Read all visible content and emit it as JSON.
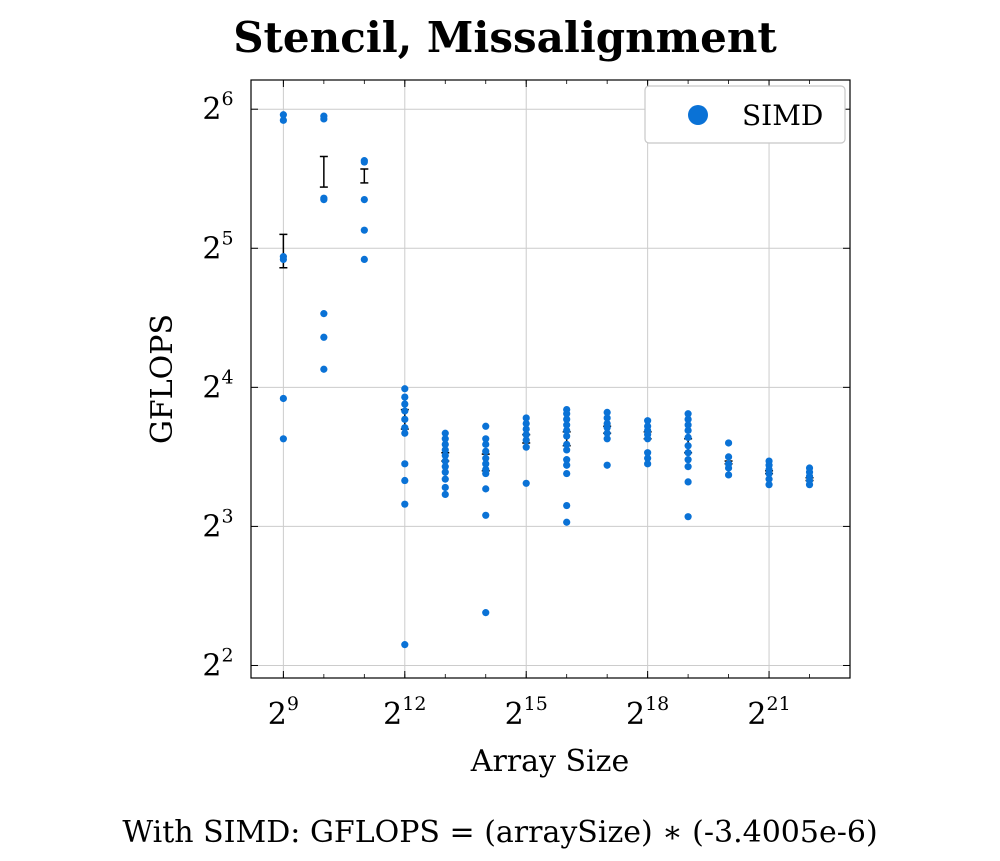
{
  "chart_data": {
    "type": "scatter",
    "title": "Stencil, Missalignment",
    "xlabel": "Array Size",
    "ylabel": "GFLOPS",
    "xscale": "log2",
    "yscale": "log2",
    "xlim_log2": [
      8.2,
      23.0
    ],
    "ylim_log2": [
      1.91,
      6.21
    ],
    "grid": true,
    "x_ticks": [
      {
        "base": "2",
        "exp": "9",
        "value_log2": 9
      },
      {
        "base": "2",
        "exp": "12",
        "value_log2": 12
      },
      {
        "base": "2",
        "exp": "15",
        "value_log2": 15
      },
      {
        "base": "2",
        "exp": "18",
        "value_log2": 18
      },
      {
        "base": "2",
        "exp": "21",
        "value_log2": 21
      }
    ],
    "y_ticks": [
      {
        "base": "2",
        "exp": "2",
        "value_log2": 2
      },
      {
        "base": "2",
        "exp": "3",
        "value_log2": 3
      },
      {
        "base": "2",
        "exp": "4",
        "value_log2": 4
      },
      {
        "base": "2",
        "exp": "5",
        "value_log2": 5
      },
      {
        "base": "2",
        "exp": "6",
        "value_log2": 6
      }
    ],
    "legend": {
      "position": "top-right",
      "entries": [
        {
          "label": "SIMD",
          "color": "#0a72d6"
        }
      ]
    },
    "series": [
      {
        "name": "SIMD",
        "color": "#0a72d6",
        "points": [
          {
            "x_log2": 9,
            "y_log2": [
              5.96,
              5.92,
              4.94,
              4.92,
              3.92,
              3.63
            ]
          },
          {
            "x_log2": 10,
            "y_log2": [
              5.95,
              5.93,
              5.36,
              5.35,
              4.53,
              4.36,
              4.13
            ]
          },
          {
            "x_log2": 11,
            "y_log2": [
              5.63,
              5.62,
              5.35,
              5.13,
              4.92
            ]
          },
          {
            "x_log2": 12,
            "y_log2": [
              3.99,
              3.93,
              3.88,
              3.83,
              3.77,
              3.71,
              3.67,
              3.45,
              3.33,
              3.16,
              2.15
            ]
          },
          {
            "x_log2": 13,
            "y_log2": [
              3.67,
              3.63,
              3.59,
              3.55,
              3.51,
              3.47,
              3.43,
              3.39,
              3.34,
              3.28,
              3.23
            ]
          },
          {
            "x_log2": 14,
            "y_log2": [
              3.72,
              3.63,
              3.59,
              3.54,
              3.49,
              3.45,
              3.41,
              3.38,
              3.27,
              3.08,
              2.38
            ]
          },
          {
            "x_log2": 15,
            "y_log2": [
              3.78,
              3.74,
              3.7,
              3.66,
              3.62,
              3.57,
              3.31
            ]
          },
          {
            "x_log2": 16,
            "y_log2": [
              3.84,
              3.81,
              3.77,
              3.73,
              3.69,
              3.65,
              3.59,
              3.55,
              3.48,
              3.44,
              3.38,
              3.15,
              3.03
            ]
          },
          {
            "x_log2": 17,
            "y_log2": [
              3.82,
              3.78,
              3.74,
              3.71,
              3.67,
              3.63,
              3.44
            ]
          },
          {
            "x_log2": 18,
            "y_log2": [
              3.76,
              3.72,
              3.69,
              3.66,
              3.63,
              3.53,
              3.49,
              3.45
            ]
          },
          {
            "x_log2": 19,
            "y_log2": [
              3.81,
              3.77,
              3.73,
              3.69,
              3.64,
              3.58,
              3.53,
              3.48,
              3.43,
              3.32,
              3.07
            ]
          },
          {
            "x_log2": 20,
            "y_log2": [
              3.6,
              3.5,
              3.45,
              3.42,
              3.37
            ]
          },
          {
            "x_log2": 21,
            "y_log2": [
              3.47,
              3.44,
              3.41,
              3.38,
              3.34,
              3.3
            ]
          },
          {
            "x_log2": 22,
            "y_log2": [
              3.42,
              3.39,
              3.36,
              3.33,
              3.3
            ]
          }
        ]
      }
    ],
    "error_bars": [
      {
        "x_log2": 9,
        "low": 4.86,
        "high": 5.1
      },
      {
        "x_log2": 10,
        "low": 5.44,
        "high": 5.66
      },
      {
        "x_log2": 11,
        "low": 5.47,
        "high": 5.57
      },
      {
        "x_log2": 12,
        "low": 3.7,
        "high": 3.84
      },
      {
        "x_log2": 13,
        "low": 3.47,
        "high": 3.53
      },
      {
        "x_log2": 14,
        "low": 3.4,
        "high": 3.52
      },
      {
        "x_log2": 15,
        "low": 3.6,
        "high": 3.66
      },
      {
        "x_log2": 16,
        "low": 3.58,
        "high": 3.68
      },
      {
        "x_log2": 17,
        "low": 3.67,
        "high": 3.72
      },
      {
        "x_log2": 18,
        "low": 3.63,
        "high": 3.68
      },
      {
        "x_log2": 19,
        "low": 3.53,
        "high": 3.63
      },
      {
        "x_log2": 20,
        "low": 3.45,
        "high": 3.47
      },
      {
        "x_log2": 21,
        "low": 3.38,
        "high": 3.4
      },
      {
        "x_log2": 22,
        "low": 3.33,
        "high": 3.35
      }
    ],
    "annotation": "With SIMD:  GFLOPS = (arraySize) ∗ (-3.4005e-6)"
  }
}
